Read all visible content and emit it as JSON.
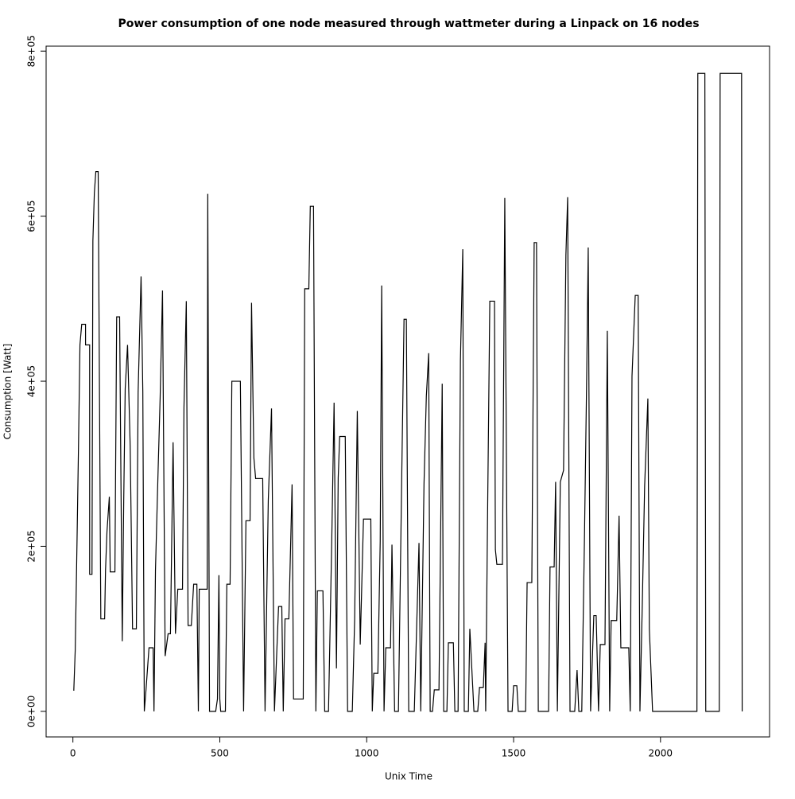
{
  "chart_data": {
    "type": "line",
    "title": "Power consumption of one node measured through wattmeter during a Linpack on 16 nodes",
    "x_label": "Unix Time",
    "y_label": "Consumption [Watt]",
    "xlim": [
      -91.2,
      2371.2
    ],
    "ylim": [
      -31000,
      806000
    ],
    "xticks": [
      0,
      500,
      1000,
      1500,
      2000
    ],
    "yticks": [
      {
        "value": 0,
        "label": "0e+00"
      },
      {
        "value": 200000,
        "label": "2e+05"
      },
      {
        "value": 400000,
        "label": "4e+05"
      },
      {
        "value": 600000,
        "label": "6e+05"
      },
      {
        "value": 800000,
        "label": "8e+05"
      }
    ],
    "x": [
      3,
      8,
      14,
      19,
      24,
      30,
      43,
      43,
      57,
      57,
      65,
      68,
      73,
      78,
      86,
      95,
      108,
      111,
      116,
      124,
      127,
      143,
      149,
      159,
      168,
      173,
      178,
      186,
      195,
      203,
      216,
      222,
      232,
      238,
      243,
      249,
      259,
      273,
      276,
      281,
      289,
      297,
      305,
      314,
      324,
      332,
      341,
      349,
      357,
      373,
      378,
      386,
      392,
      403,
      411,
      422,
      427,
      430,
      457,
      459,
      465,
      486,
      492,
      497,
      500,
      503,
      519,
      524,
      535,
      541,
      570,
      581,
      589,
      603,
      608,
      616,
      622,
      646,
      654,
      665,
      676,
      686,
      700,
      711,
      716,
      722,
      735,
      746,
      751,
      784,
      789,
      803,
      808,
      819,
      827,
      832,
      851,
      857,
      870,
      881,
      889,
      897,
      903,
      908,
      927,
      935,
      951,
      959,
      968,
      978,
      989,
      1014,
      1019,
      1024,
      1038,
      1046,
      1051,
      1059,
      1065,
      1081,
      1086,
      1095,
      1108,
      1119,
      1127,
      1135,
      1143,
      1162,
      1178,
      1184,
      1195,
      1203,
      1211,
      1216,
      1224,
      1230,
      1246,
      1257,
      1262,
      1273,
      1278,
      1295,
      1300,
      1311,
      1319,
      1327,
      1332,
      1346,
      1351,
      1365,
      1378,
      1384,
      1397,
      1403,
      1405,
      1411,
      1419,
      1435,
      1438,
      1443,
      1462,
      1470,
      1481,
      1495,
      1500,
      1511,
      1516,
      1541,
      1546,
      1562,
      1570,
      1578,
      1584,
      1619,
      1624,
      1638,
      1643,
      1649,
      1659,
      1670,
      1678,
      1684,
      1692,
      1708,
      1716,
      1722,
      1732,
      1741,
      1749,
      1754,
      1762,
      1773,
      1781,
      1789,
      1795,
      1811,
      1819,
      1827,
      1832,
      1851,
      1859,
      1865,
      1892,
      1897,
      1903,
      1914,
      1924,
      1930,
      1938,
      1946,
      1957,
      1962,
      1973,
      2124,
      2127,
      2151,
      2154,
      2200,
      2203,
      2276,
      2278
    ],
    "values": [
      25000,
      75000,
      206000,
      321000,
      444000,
      469000,
      469000,
      444000,
      444000,
      166000,
      166000,
      570000,
      628000,
      654000,
      654000,
      112000,
      112000,
      171000,
      218000,
      260000,
      169000,
      169000,
      478000,
      478000,
      85000,
      256000,
      391000,
      444000,
      321000,
      100000,
      100000,
      387000,
      527000,
      387000,
      0,
      27000,
      77000,
      77000,
      0,
      171000,
      279000,
      381000,
      510000,
      67000,
      94000,
      94000,
      326000,
      94000,
      148000,
      148000,
      368000,
      497000,
      104000,
      104000,
      154000,
      154000,
      0,
      148000,
      148000,
      627000,
      0,
      0,
      15000,
      165000,
      15000,
      0,
      0,
      154000,
      154000,
      400000,
      400000,
      0,
      231000,
      231000,
      495000,
      307000,
      282000,
      282000,
      0,
      256000,
      367000,
      0,
      127000,
      127000,
      0,
      112000,
      112000,
      275000,
      15000,
      15000,
      512000,
      512000,
      612000,
      612000,
      0,
      146000,
      146000,
      0,
      0,
      206000,
      374000,
      52000,
      283000,
      333000,
      333000,
      0,
      0,
      112000,
      364000,
      81000,
      233000,
      233000,
      0,
      46000,
      46000,
      206000,
      516000,
      0,
      77000,
      77000,
      202000,
      0,
      0,
      279000,
      475000,
      475000,
      0,
      0,
      204000,
      0,
      275000,
      382000,
      434000,
      0,
      0,
      26000,
      26000,
      397000,
      0,
      0,
      83000,
      83000,
      0,
      0,
      425000,
      560000,
      0,
      0,
      100000,
      0,
      0,
      29000,
      29000,
      83000,
      0,
      224000,
      497000,
      497000,
      196000,
      178000,
      178000,
      622000,
      0,
      0,
      31000,
      31000,
      0,
      0,
      156000,
      156000,
      568000,
      568000,
      0,
      0,
      175000,
      175000,
      278000,
      0,
      278000,
      292000,
      553000,
      623000,
      0,
      0,
      50000,
      0,
      0,
      205000,
      412000,
      562000,
      0,
      116000,
      116000,
      0,
      81000,
      81000,
      461000,
      0,
      110000,
      110000,
      237000,
      77000,
      77000,
      0,
      406000,
      504000,
      504000,
      0,
      129000,
      273000,
      379000,
      100000,
      0,
      0,
      773000,
      773000,
      0,
      0,
      773000,
      773000,
      0
    ],
    "color": "#000000"
  }
}
